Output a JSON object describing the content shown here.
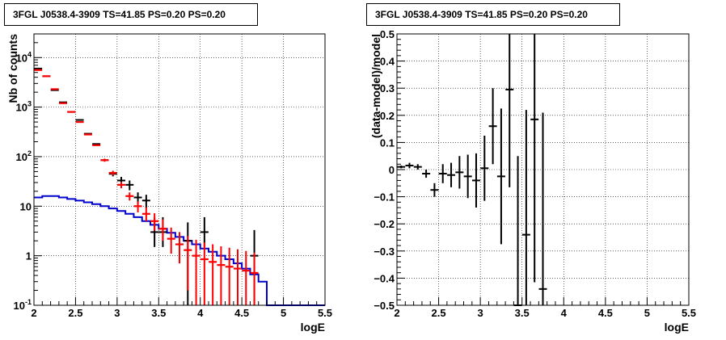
{
  "colors": {
    "data": "#000000",
    "model": "#ff0000",
    "background_model": "#0000cc",
    "grid": "#000000"
  },
  "chart_data": [
    {
      "type": "step+errorbar",
      "title": "3FGL J0538.4-3909 TS=41.85 PS=0.20 PS=0.20",
      "xlabel": "logE",
      "ylabel": "Nb of counts",
      "xlim": [
        2,
        5.5
      ],
      "ylim": [
        0.1,
        30000
      ],
      "yscale": "log",
      "grid": true,
      "x_ticks": [
        "2",
        "2.5",
        "3",
        "3.5",
        "4",
        "4.5",
        "5",
        "5.5"
      ],
      "y_ticks": [
        "10^{-1}",
        "1",
        "10",
        "10^{2}",
        "10^{3}",
        "10^{4}"
      ],
      "series": [
        {
          "role": "data",
          "color": "#000000",
          "x": [
            2.05,
            2.15,
            2.25,
            2.35,
            2.45,
            2.55,
            2.65,
            2.75,
            2.85,
            2.95,
            3.05,
            3.15,
            3.25,
            3.35,
            3.45,
            3.55,
            3.65,
            3.75,
            3.85,
            3.95,
            4.05,
            4.15,
            4.25,
            4.35,
            4.45,
            4.55,
            4.65
          ],
          "y": [
            6000,
            4200,
            2200,
            1250,
            800,
            550,
            290,
            180,
            85,
            45,
            33,
            27,
            15,
            13,
            3,
            3,
            2,
            2,
            2,
            1,
            3,
            1,
            1,
            1,
            1,
            1,
            1
          ],
          "err_lo": [
            0,
            0,
            0,
            0,
            0,
            0,
            0,
            0,
            5,
            5,
            6,
            6,
            4,
            4,
            1.5,
            1.5,
            1.3,
            1.3,
            1.3,
            1,
            1.5,
            1,
            1,
            1,
            1,
            1,
            1
          ],
          "err_hi": [
            0,
            0,
            0,
            0,
            0,
            0,
            0,
            0,
            5,
            5,
            6,
            6,
            4,
            4,
            3,
            3,
            2.7,
            2.7,
            2.7,
            2.3,
            3,
            2.3,
            2.3,
            2.3,
            2.3,
            2.3,
            2.3
          ],
          "err_lo_to_floor": [
            false,
            false,
            false,
            false,
            false,
            false,
            false,
            false,
            false,
            false,
            false,
            false,
            false,
            false,
            false,
            false,
            false,
            false,
            true,
            false,
            false,
            false,
            false,
            false,
            false,
            false,
            false
          ],
          "visible": [
            true,
            true,
            true,
            true,
            true,
            true,
            true,
            true,
            true,
            true,
            true,
            true,
            true,
            true,
            true,
            true,
            false,
            false,
            true,
            false,
            true,
            false,
            false,
            false,
            false,
            false,
            true
          ]
        },
        {
          "role": "model",
          "color": "#ff0000",
          "x": [
            2.05,
            2.15,
            2.25,
            2.35,
            2.45,
            2.55,
            2.65,
            2.75,
            2.85,
            2.95,
            3.05,
            3.15,
            3.25,
            3.35,
            3.45,
            3.55,
            3.65,
            3.75,
            3.85,
            3.95,
            4.05,
            4.15,
            4.25,
            4.35,
            4.45,
            4.55,
            4.65
          ],
          "y": [
            5600,
            4200,
            2300,
            1200,
            800,
            500,
            280,
            170,
            85,
            47,
            27,
            16,
            10,
            7,
            5,
            3.5,
            2.2,
            1.7,
            1.3,
            1,
            0.85,
            0.75,
            0.65,
            0.6,
            0.55,
            0.5,
            0.45
          ],
          "err_lo": [
            0,
            0,
            0,
            0,
            0,
            0,
            0,
            0,
            6,
            5,
            4,
            3,
            2.5,
            2,
            1.8,
            1.5,
            1.1,
            1.0,
            1.1,
            1,
            0.85,
            0.75,
            0.65,
            0.6,
            0.55,
            0.5,
            0.45
          ],
          "err_hi": [
            0,
            0,
            0,
            0,
            0,
            0,
            0,
            0,
            6,
            5,
            4,
            3,
            2.5,
            2.5,
            2.2,
            1.9,
            1.5,
            1.3,
            1.2,
            1.1,
            1.0,
            0.95,
            0.9,
            0.85,
            0.8,
            0.75,
            0.7
          ]
        },
        {
          "role": "background_model",
          "color": "#0000cc",
          "step_edges": [
            2.0,
            2.1,
            2.2,
            2.3,
            2.4,
            2.5,
            2.6,
            2.7,
            2.8,
            2.9,
            3.0,
            3.1,
            3.2,
            3.3,
            3.4,
            3.5,
            3.6,
            3.7,
            3.8,
            3.9,
            4.0,
            4.1,
            4.2,
            4.3,
            4.4,
            4.5,
            4.6,
            4.7,
            4.8,
            4.9,
            5.0,
            5.1,
            5.2,
            5.3,
            5.4,
            5.5
          ],
          "values": [
            15,
            16,
            16,
            15,
            14,
            13,
            12,
            11,
            10,
            9,
            8,
            7,
            6,
            5,
            4.2,
            3.5,
            2.9,
            2.4,
            2.0,
            1.7,
            1.4,
            1.2,
            1.0,
            0.85,
            0.7,
            0.55,
            0.42,
            0.3,
            0.1,
            0.1,
            0.1,
            0.1,
            0.1,
            0.1,
            0.1
          ]
        }
      ]
    },
    {
      "type": "errorbar",
      "title": "3FGL J0538.4-3909 TS=41.85 PS=0.20 PS=0.20",
      "xlabel": "logE",
      "ylabel": "(data-model)/model",
      "xlim": [
        2,
        5.5
      ],
      "ylim": [
        -0.5,
        0.5
      ],
      "grid": true,
      "x_ticks": [
        "2",
        "2.5",
        "3",
        "3.5",
        "4",
        "4.5",
        "5",
        "5.5"
      ],
      "y_ticks": [
        "-0.5",
        "-0.4",
        "-0.3",
        "-0.2",
        "-0.1",
        "0",
        "0.1",
        "0.2",
        "0.3",
        "0.4",
        "0.5"
      ],
      "series": [
        {
          "role": "residual",
          "color": "#000000",
          "x": [
            2.05,
            2.15,
            2.25,
            2.35,
            2.45,
            2.55,
            2.65,
            2.75,
            2.85,
            2.95,
            3.05,
            3.15,
            3.25,
            3.35,
            3.45,
            3.55,
            3.65,
            3.75
          ],
          "y": [
            0.01,
            0.015,
            0.01,
            -0.015,
            -0.075,
            -0.015,
            -0.02,
            -0.01,
            -0.025,
            -0.04,
            0.005,
            0.16,
            -0.025,
            0.295,
            -0.5,
            -0.24,
            0.185,
            -0.44
          ],
          "err": [
            0.005,
            0.01,
            0.01,
            0.015,
            0.025,
            0.035,
            0.045,
            0.06,
            0.08,
            0.1,
            0.12,
            0.14,
            0.25,
            0.36,
            0.55,
            0.46,
            0.6,
            0.65
          ]
        }
      ]
    }
  ]
}
